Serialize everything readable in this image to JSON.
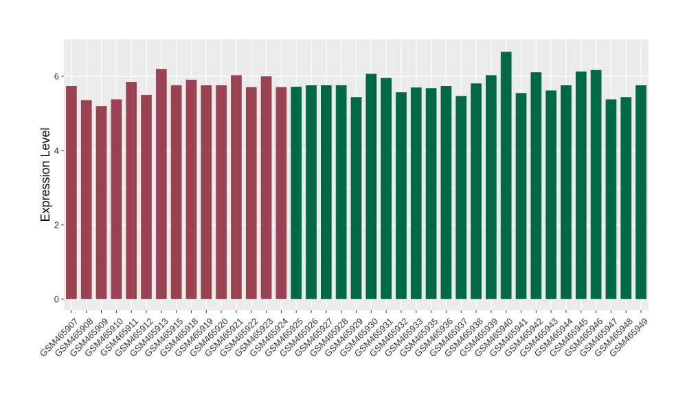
{
  "chart_data": {
    "type": "bar",
    "title": "",
    "xlabel": "",
    "ylabel": "Expression Level",
    "ylim": [
      -0.3,
      7.0
    ],
    "yticks": [
      0,
      2,
      4,
      6
    ],
    "grid": true,
    "legend": "none",
    "colors": {
      "group1": "#9b4352",
      "group2": "#006846",
      "panel": "#ebebeb",
      "grid": "#ffffff"
    },
    "categories": [
      "GSM465907",
      "GSM465908",
      "GSM465909",
      "GSM465910",
      "GSM465911",
      "GSM465912",
      "GSM465913",
      "GSM465915",
      "GSM465918",
      "GSM465919",
      "GSM465920",
      "GSM465921",
      "GSM465922",
      "GSM465923",
      "GSM465924",
      "GSM465925",
      "GSM465926",
      "GSM465927",
      "GSM465928",
      "GSM465929",
      "GSM465930",
      "GSM465931",
      "GSM465932",
      "GSM465933",
      "GSM465935",
      "GSM465936",
      "GSM465937",
      "GSM465938",
      "GSM465939",
      "GSM465940",
      "GSM465941",
      "GSM465942",
      "GSM465943",
      "GSM465944",
      "GSM465945",
      "GSM465946",
      "GSM465947",
      "GSM465948",
      "GSM465949"
    ],
    "values": [
      5.74,
      5.36,
      5.2,
      5.38,
      5.85,
      5.5,
      6.2,
      5.76,
      5.91,
      5.76,
      5.76,
      6.03,
      5.71,
      6.0,
      5.71,
      5.72,
      5.76,
      5.76,
      5.76,
      5.44,
      6.07,
      5.96,
      5.57,
      5.7,
      5.68,
      5.74,
      5.47,
      5.81,
      6.03,
      6.66,
      5.55,
      6.11,
      5.62,
      5.76,
      6.13,
      6.17,
      5.38,
      5.44,
      5.76
    ],
    "groups": [
      1,
      1,
      1,
      1,
      1,
      1,
      1,
      1,
      1,
      1,
      1,
      1,
      1,
      1,
      1,
      2,
      2,
      2,
      2,
      2,
      2,
      2,
      2,
      2,
      2,
      2,
      2,
      2,
      2,
      2,
      2,
      2,
      2,
      2,
      2,
      2,
      2,
      2,
      2
    ]
  }
}
